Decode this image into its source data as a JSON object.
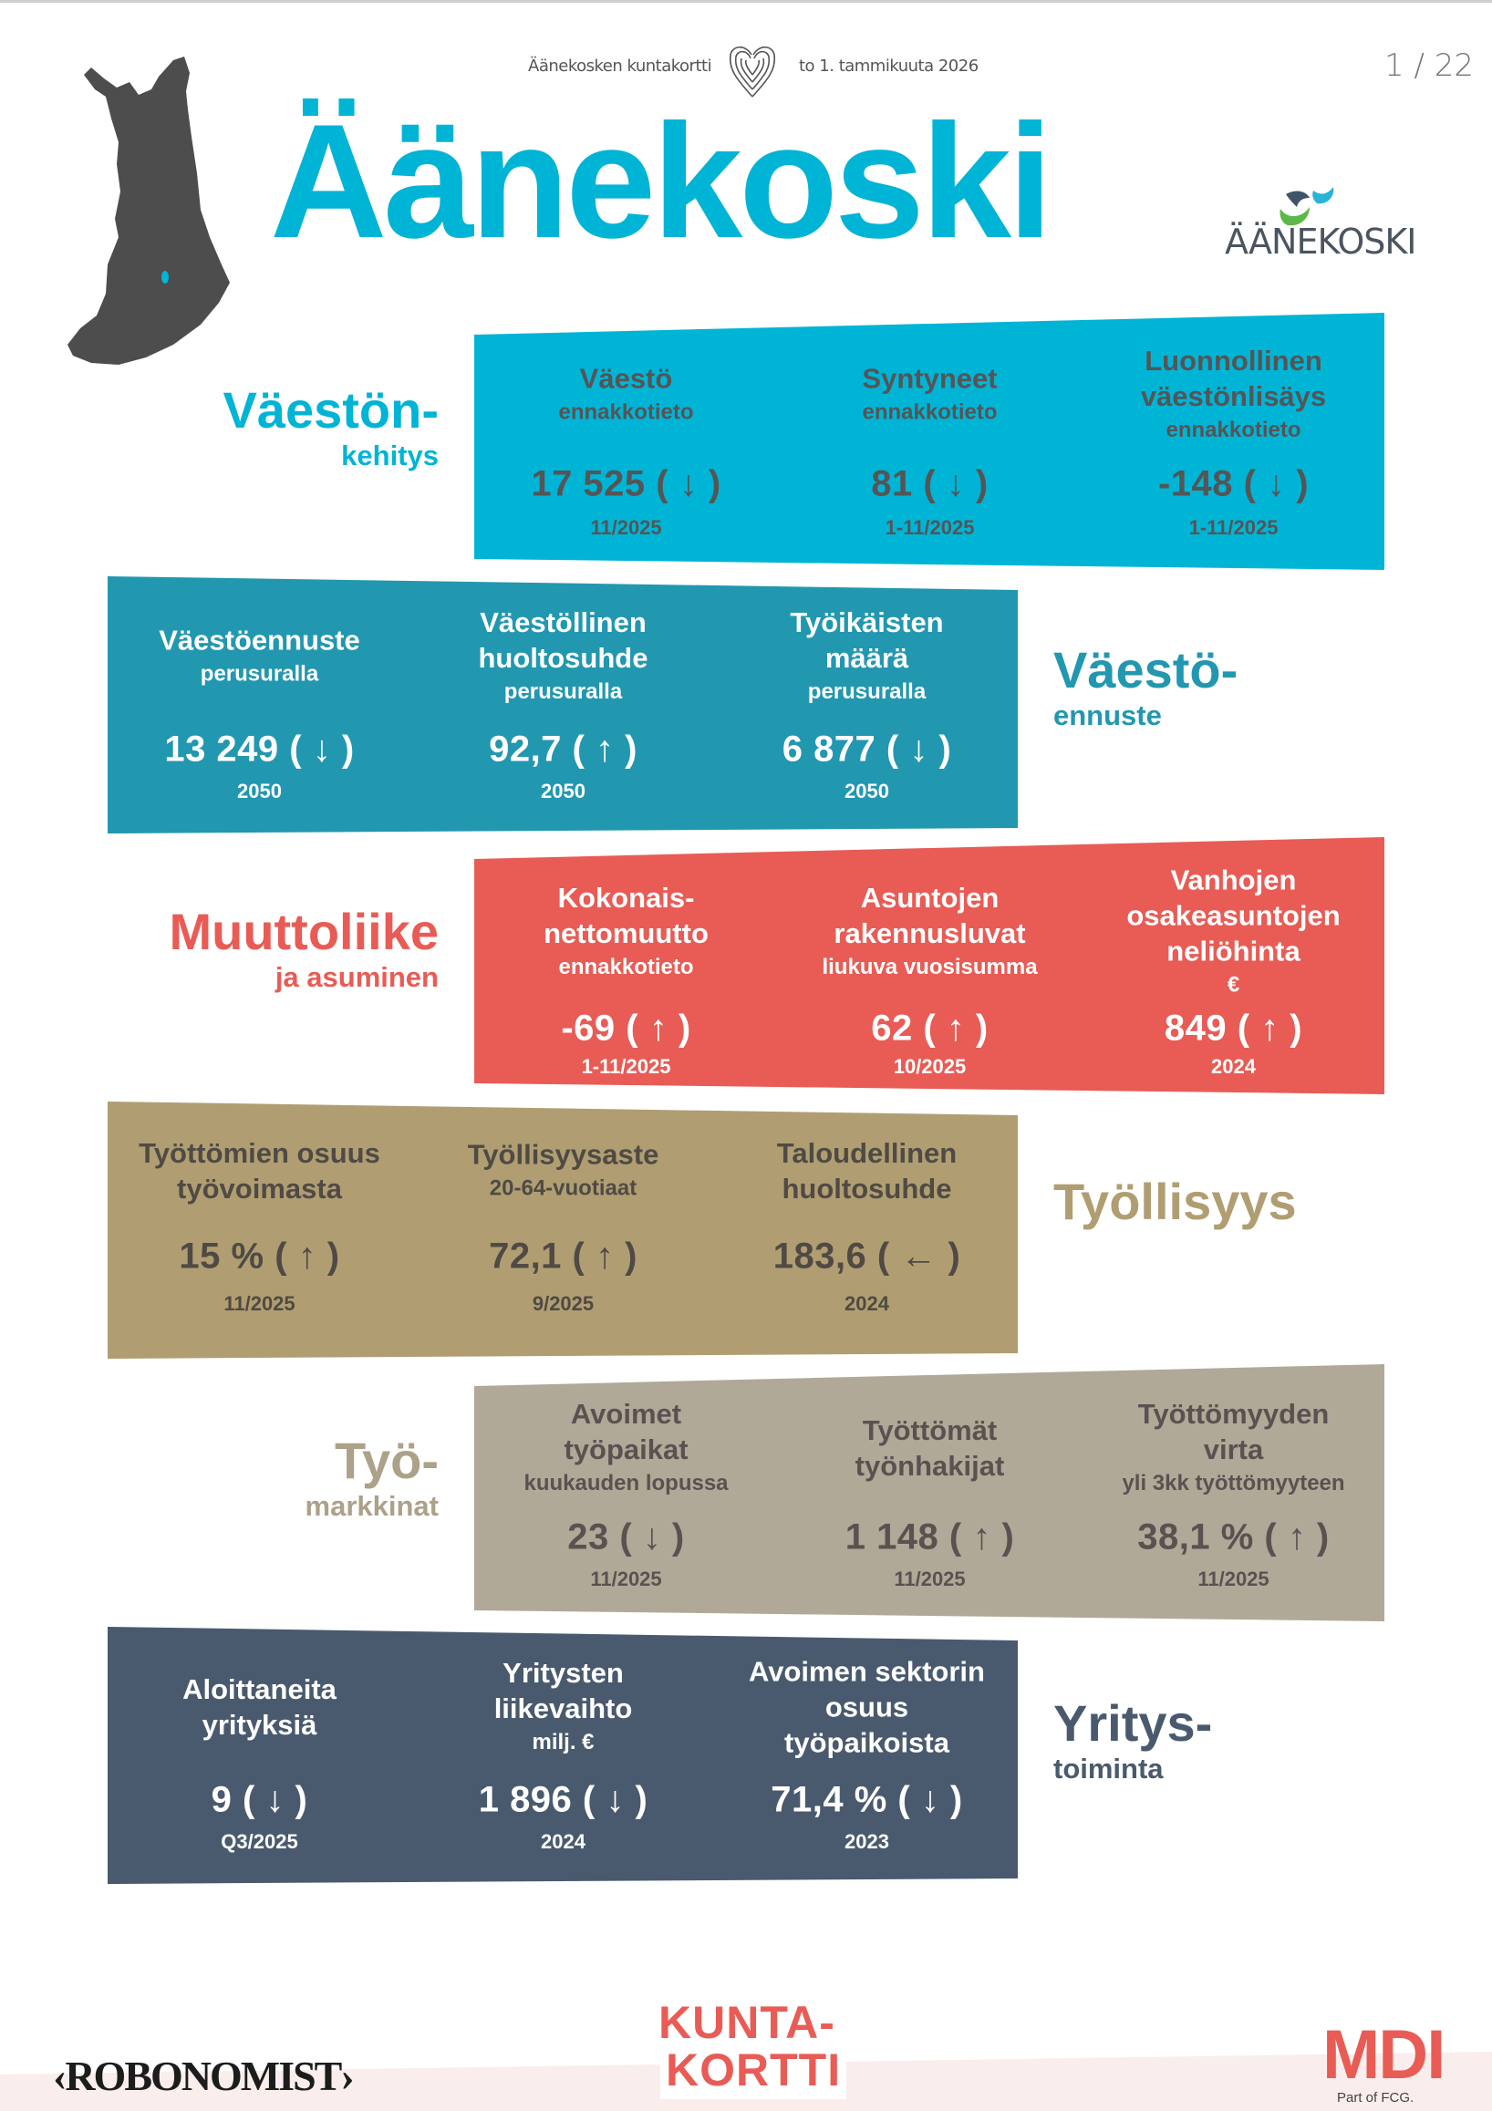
{
  "header": {
    "card_name": "Äänekosken kuntakortti",
    "date": "to 1. tammikuuta 2026",
    "page": "1 / 22"
  },
  "title": "Äänekoski",
  "municipality_logo_text": "ÄÄNEKOSKI",
  "colors": {
    "cyan": "#00b4d6",
    "teal": "#2297b0",
    "red": "#e85c55",
    "tan": "#b09e72",
    "grey": "#b0a998",
    "slate": "#4a5a6e",
    "map": "#4d4d4d"
  },
  "sections": [
    {
      "label": "Väestön-",
      "sublabel": "kehitys",
      "color": "#00b4d6",
      "label_color": "#00b4d6",
      "text_color": "#555555",
      "items": [
        {
          "title": [
            "Väestö"
          ],
          "subtitle": "ennakkotieto",
          "value": "17 525",
          "trend": "↓",
          "date": "11/2025"
        },
        {
          "title": [
            "Syntyneet"
          ],
          "subtitle": "ennakkotieto",
          "value": "81",
          "trend": "↓",
          "date": "1-11/2025"
        },
        {
          "title": [
            "Luonnollinen",
            "väestönlisäys"
          ],
          "subtitle": "ennakkotieto",
          "value": "-148",
          "trend": "↓",
          "date": "1-11/2025"
        }
      ]
    },
    {
      "label": "Väestö-",
      "sublabel": "ennuste",
      "color": "#2297b0",
      "label_color": "#2297b0",
      "text_color": "#ffffff",
      "items": [
        {
          "title": [
            "Väestöennuste"
          ],
          "subtitle": "perusuralla",
          "value": "13 249",
          "trend": "↓",
          "date": "2050"
        },
        {
          "title": [
            "Väestöllinen",
            "huoltosuhde"
          ],
          "subtitle": "perusuralla",
          "value": "92,7",
          "trend": "↑",
          "date": "2050"
        },
        {
          "title": [
            "Työikäisten",
            "määrä"
          ],
          "subtitle": "perusuralla",
          "value": "6 877",
          "trend": "↓",
          "date": "2050"
        }
      ]
    },
    {
      "label": "Muuttoliike",
      "sublabel": "ja asuminen",
      "color": "#e85c55",
      "label_color": "#e85c55",
      "text_color": "#ffffff",
      "items": [
        {
          "title": [
            "Kokonais-",
            "nettomuutto"
          ],
          "subtitle": "ennakkotieto",
          "value": "-69",
          "trend": "↑",
          "date": "1-11/2025"
        },
        {
          "title": [
            "Asuntojen",
            "rakennusluvat"
          ],
          "subtitle": "liukuva vuosisumma",
          "value": "62",
          "trend": "↑",
          "date": "10/2025"
        },
        {
          "title": [
            "Vanhojen",
            "osakeasuntojen",
            "neliöhinta"
          ],
          "subtitle": "€",
          "value": "849",
          "trend": "↑",
          "date": "2024"
        }
      ]
    },
    {
      "label": "Työllisyys",
      "sublabel": "",
      "color": "#b09e72",
      "label_color": "#b09e72",
      "text_color": "#4f4a44",
      "items": [
        {
          "title": [
            "Työttömien osuus",
            "työvoimasta"
          ],
          "subtitle": "",
          "value": "15 %",
          "trend": "↑",
          "date": "11/2025"
        },
        {
          "title": [
            "Työllisyysaste"
          ],
          "subtitle": "20-64-vuotiaat",
          "value": "72,1",
          "trend": "↑",
          "date": "9/2025"
        },
        {
          "title": [
            "Taloudellinen",
            "huoltosuhde"
          ],
          "subtitle": "",
          "value": "183,6",
          "trend": "←",
          "date": "2024"
        }
      ]
    },
    {
      "label": "Työ-",
      "sublabel": "markkinat",
      "color": "#b0a998",
      "label_color": "#aca189",
      "text_color": "#5a5250",
      "items": [
        {
          "title": [
            "Avoimet",
            "työpaikat"
          ],
          "subtitle": "kuukauden lopussa",
          "value": "23",
          "trend": "↓",
          "date": "11/2025"
        },
        {
          "title": [
            "Työttömät",
            "työnhakijat"
          ],
          "subtitle": "",
          "value": "1 148",
          "trend": "↑",
          "date": "11/2025"
        },
        {
          "title": [
            "Työttömyyden",
            "virta"
          ],
          "subtitle": "yli 3kk työttömyyteen",
          "value": "38,1 %",
          "trend": "↑",
          "date": "11/2025"
        }
      ]
    },
    {
      "label": "Yritys-",
      "sublabel": "toiminta",
      "color": "#4a5a6e",
      "label_color": "#4a5a6e",
      "text_color": "#ffffff",
      "items": [
        {
          "title": [
            "Aloittaneita",
            "yrityksiä"
          ],
          "subtitle": "",
          "value": "9",
          "trend": "↓",
          "date": "Q3/2025"
        },
        {
          "title": [
            "Yritysten",
            "liikevaihto"
          ],
          "subtitle": "milj. €",
          "value": "1 896",
          "trend": "↓",
          "date": "2024"
        },
        {
          "title": [
            "Avoimen sektorin",
            "osuus",
            "työpaikoista"
          ],
          "subtitle": "",
          "value": "71,4 %",
          "trend": "↓",
          "date": "2023"
        }
      ]
    }
  ],
  "footer": {
    "left_logo": "‹ROBONOMIST›",
    "center_logo": [
      "KUNTA-",
      "KORTTI"
    ],
    "right_logo": "MDI",
    "right_tagline": "Part of FCG."
  }
}
